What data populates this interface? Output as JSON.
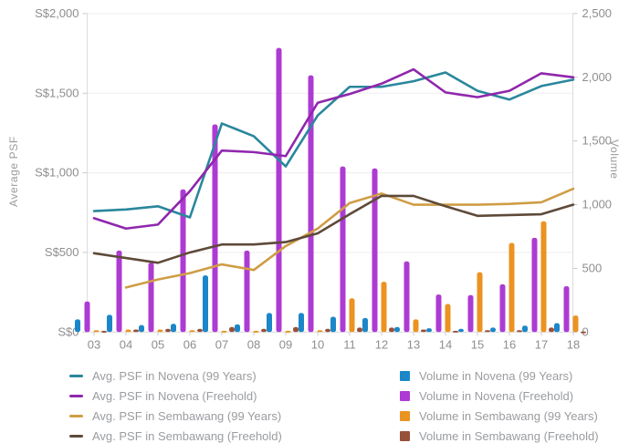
{
  "chart_data": {
    "type": "bar+line combo",
    "title": "",
    "x_categories": [
      "03",
      "04",
      "05",
      "06",
      "07",
      "08",
      "09",
      "10",
      "11",
      "12",
      "13",
      "14",
      "15",
      "16",
      "17",
      "18"
    ],
    "left_axis": {
      "label": "Average PSF",
      "ticks": [
        "S$0",
        "S$500",
        "S$1,000",
        "S$1,500",
        "S$2,000"
      ],
      "tick_values": [
        0,
        500,
        1000,
        1500,
        2000
      ],
      "range": [
        0,
        2000
      ]
    },
    "right_axis": {
      "label": "Volume",
      "ticks": [
        "0",
        "500",
        "1,000",
        "1,500",
        "2,000",
        "2,500"
      ],
      "tick_values": [
        0,
        500,
        1000,
        1500,
        2000,
        2500
      ],
      "range": [
        0,
        2500
      ]
    },
    "grid": true,
    "legend_position": "bottom-two-columns",
    "line_series": [
      {
        "name": "Avg. PSF in Novena (99 Years)",
        "color": "#2a879c",
        "axis": "left",
        "values": [
          760,
          770,
          790,
          720,
          1310,
          1230,
          1040,
          1360,
          1540,
          1540,
          1575,
          1630,
          1515,
          1460,
          1545,
          1585
        ]
      },
      {
        "name": "Avg. PSF in Novena (Freehold)",
        "color": "#8f27ad",
        "axis": "left",
        "values": [
          715,
          650,
          675,
          885,
          1140,
          1130,
          1105,
          1440,
          1495,
          1560,
          1650,
          1505,
          1475,
          1515,
          1625,
          1600
        ]
      },
      {
        "name": "Avg. PSF in Sembawang (99 Years)",
        "color": "#cf9d45",
        "axis": "left",
        "values": [
          null,
          280,
          330,
          370,
          425,
          390,
          540,
          650,
          810,
          870,
          800,
          800,
          800,
          805,
          815,
          900
        ]
      },
      {
        "name": "Avg. PSF in Sembawang (Freehold)",
        "color": "#5e4a39",
        "axis": "left",
        "values": [
          495,
          465,
          435,
          500,
          550,
          550,
          565,
          620,
          740,
          855,
          855,
          790,
          730,
          735,
          740,
          800
        ]
      }
    ],
    "bar_series": [
      {
        "name": "Volume in Novena (99 Years)",
        "color": "#1b87c9",
        "axis": "right",
        "values": [
          100,
          135,
          55,
          65,
          445,
          60,
          150,
          150,
          120,
          110,
          40,
          30,
          25,
          35,
          50,
          70
        ]
      },
      {
        "name": "Volume in Novena (Freehold)",
        "color": "#ad3bd3",
        "axis": "right",
        "values": [
          240,
          640,
          545,
          1120,
          1630,
          640,
          2230,
          2015,
          1300,
          1285,
          555,
          295,
          290,
          375,
          740,
          360
        ]
      },
      {
        "name": "Volume in Sembawang (99 Years)",
        "color": "#eb9320",
        "axis": "right",
        "values": [
          15,
          20,
          20,
          15,
          10,
          10,
          10,
          15,
          265,
          395,
          100,
          220,
          470,
          700,
          870,
          130
        ]
      },
      {
        "name": "Volume in Sembawang (Freehold)",
        "color": "#97503a",
        "axis": "right",
        "values": [
          10,
          20,
          25,
          25,
          40,
          25,
          40,
          25,
          35,
          35,
          20,
          10,
          15,
          15,
          35,
          5
        ]
      }
    ]
  }
}
